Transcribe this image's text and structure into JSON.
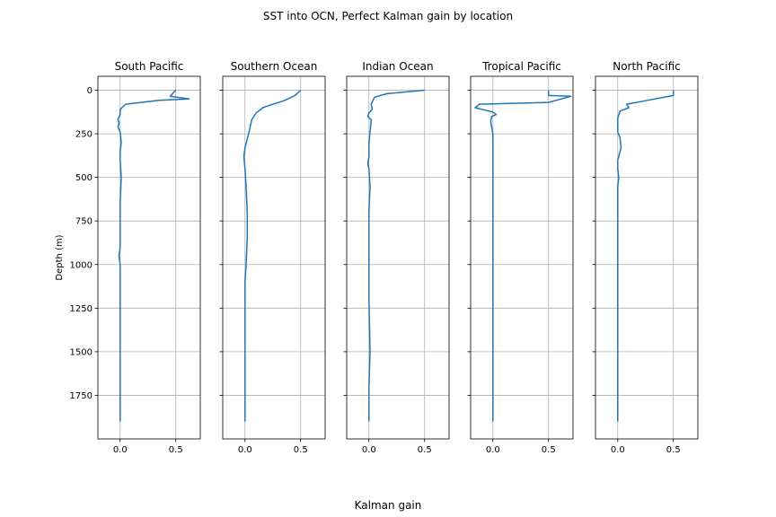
{
  "figure": {
    "suptitle": "SST into OCN, Perfect Kalman gain by location",
    "supxlabel": "Kalman gain",
    "ylabel": "Depth (m)"
  },
  "chart_data": {
    "type": "line",
    "title": "SST into OCN, Perfect Kalman gain by location",
    "xlabel": "Kalman gain",
    "ylabel": "Depth (m)",
    "xlim": [
      -0.2,
      0.72
    ],
    "ylim": [
      2000,
      -80
    ],
    "y_inverted": true,
    "x_ticks": [
      0.0,
      0.5
    ],
    "x_tick_labels": [
      "0.0",
      "0.5"
    ],
    "y_ticks": [
      0,
      250,
      500,
      750,
      1000,
      1250,
      1500,
      1750
    ],
    "y_tick_labels": [
      "0",
      "250",
      "500",
      "750",
      "1000",
      "1250",
      "1500",
      "1750"
    ],
    "grid": true,
    "line_color": "#1f77b4",
    "panels": [
      {
        "name": "South Pacific",
        "x": [
          0.5,
          0.45,
          0.62,
          0.35,
          0.05,
          0.0,
          0.0,
          -0.02,
          -0.01,
          -0.02,
          0.0,
          0.01,
          0.0,
          0.0,
          0.01,
          0.0,
          0.0,
          0.0,
          0.0,
          -0.01,
          0.0,
          0.0,
          0.0,
          0.0,
          0.0,
          0.0
        ],
        "depth": [
          0,
          35,
          50,
          58,
          80,
          110,
          140,
          165,
          190,
          210,
          240,
          300,
          350,
          400,
          500,
          650,
          750,
          850,
          900,
          950,
          1000,
          1200,
          1400,
          1600,
          1800,
          1900
        ]
      },
      {
        "name": "Southern Ocean",
        "x": [
          0.5,
          0.45,
          0.35,
          0.25,
          0.16,
          0.1,
          0.06,
          0.04,
          0.02,
          0.0,
          -0.01,
          0.0,
          0.01,
          0.02,
          0.02,
          0.01,
          0.0,
          0.0,
          0.0,
          0.0,
          0.0
        ],
        "depth": [
          0,
          30,
          60,
          80,
          100,
          130,
          170,
          230,
          280,
          330,
          380,
          450,
          550,
          700,
          850,
          1000,
          1100,
          1300,
          1500,
          1700,
          1900
        ]
      },
      {
        "name": "Indian Ocean",
        "x": [
          0.5,
          0.16,
          0.05,
          0.02,
          0.03,
          0.0,
          -0.01,
          0.02,
          0.01,
          0.0,
          0.0,
          -0.01,
          0.0,
          0.01,
          0.0,
          0.0,
          0.0,
          0.0,
          0.0,
          0.01,
          0.0,
          0.0
        ],
        "depth": [
          0,
          20,
          40,
          80,
          110,
          130,
          150,
          170,
          240,
          300,
          380,
          420,
          450,
          550,
          700,
          800,
          900,
          1000,
          1200,
          1500,
          1700,
          1900
        ]
      },
      {
        "name": "Tropical Pacific",
        "x": [
          0.5,
          0.5,
          0.7,
          0.5,
          -0.12,
          -0.16,
          0.0,
          0.03,
          -0.01,
          -0.02,
          0.0,
          0.0,
          0.0,
          0.0,
          0.0,
          0.0,
          0.0,
          0.0
        ],
        "depth": [
          0,
          30,
          35,
          70,
          80,
          100,
          125,
          140,
          150,
          180,
          250,
          400,
          600,
          800,
          1000,
          1200,
          1500,
          1900
        ]
      },
      {
        "name": "North Pacific",
        "x": [
          0.5,
          0.5,
          0.25,
          0.08,
          0.1,
          0.02,
          0.0,
          0.0,
          0.02,
          0.03,
          0.0,
          0.0,
          0.01,
          0.0,
          0.0,
          0.0,
          0.0,
          0.0,
          0.0,
          0.0
        ],
        "depth": [
          0,
          30,
          60,
          80,
          100,
          120,
          160,
          240,
          270,
          330,
          400,
          450,
          500,
          550,
          700,
          900,
          1100,
          1300,
          1600,
          1900
        ]
      }
    ]
  }
}
